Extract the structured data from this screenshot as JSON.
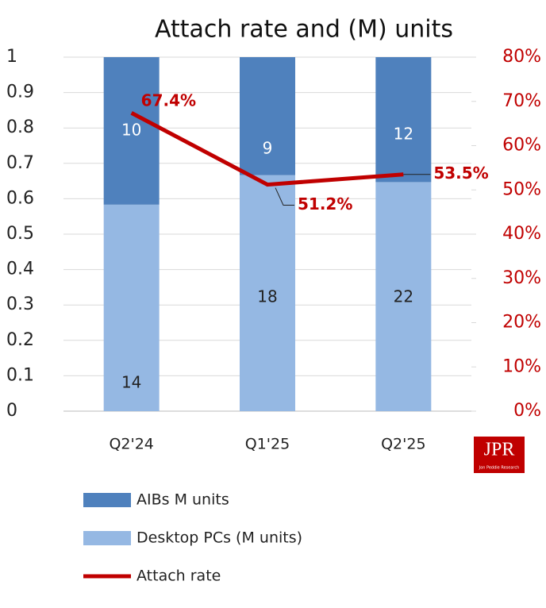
{
  "chart_data": {
    "type": "bar",
    "title": "Attach rate and (M) units",
    "stacking": "percent",
    "categories": [
      "Q2'24",
      "Q1'25",
      "Q2'25"
    ],
    "series": [
      {
        "name": "Desktop PCs (M units)",
        "color": "#95b8e3",
        "values": [
          14,
          18,
          22
        ]
      },
      {
        "name": "AIBs M units",
        "color": "#4f81bd",
        "values": [
          10,
          9,
          12
        ]
      },
      {
        "name": "Attach rate",
        "type": "line",
        "axis": "y2",
        "color": "#c00000",
        "values": [
          67.4,
          51.2,
          53.5
        ],
        "value_labels": [
          "67.4%",
          "51.2%",
          "53.5%"
        ]
      }
    ],
    "ylim": [
      0,
      1
    ],
    "yticks": [
      0,
      0.1,
      0.2,
      0.3,
      0.4,
      0.5,
      0.6,
      0.7,
      0.8,
      0.9,
      1
    ],
    "y2lim": [
      0,
      80
    ],
    "y2ticks": [
      {
        "value": 0,
        "label": "0%"
      },
      {
        "value": 10,
        "label": "10%"
      },
      {
        "value": 20,
        "label": "20%"
      },
      {
        "value": 30,
        "label": "30%"
      },
      {
        "value": 40,
        "label": "40%"
      },
      {
        "value": 50,
        "label": "50%"
      },
      {
        "value": 60,
        "label": "60%"
      },
      {
        "value": 70,
        "label": "70%"
      },
      {
        "value": 80,
        "label": "80%"
      }
    ],
    "grid": true,
    "legend": "bottom",
    "logo": "JPR",
    "logo_subtitle": "Jon Peddie Research"
  }
}
